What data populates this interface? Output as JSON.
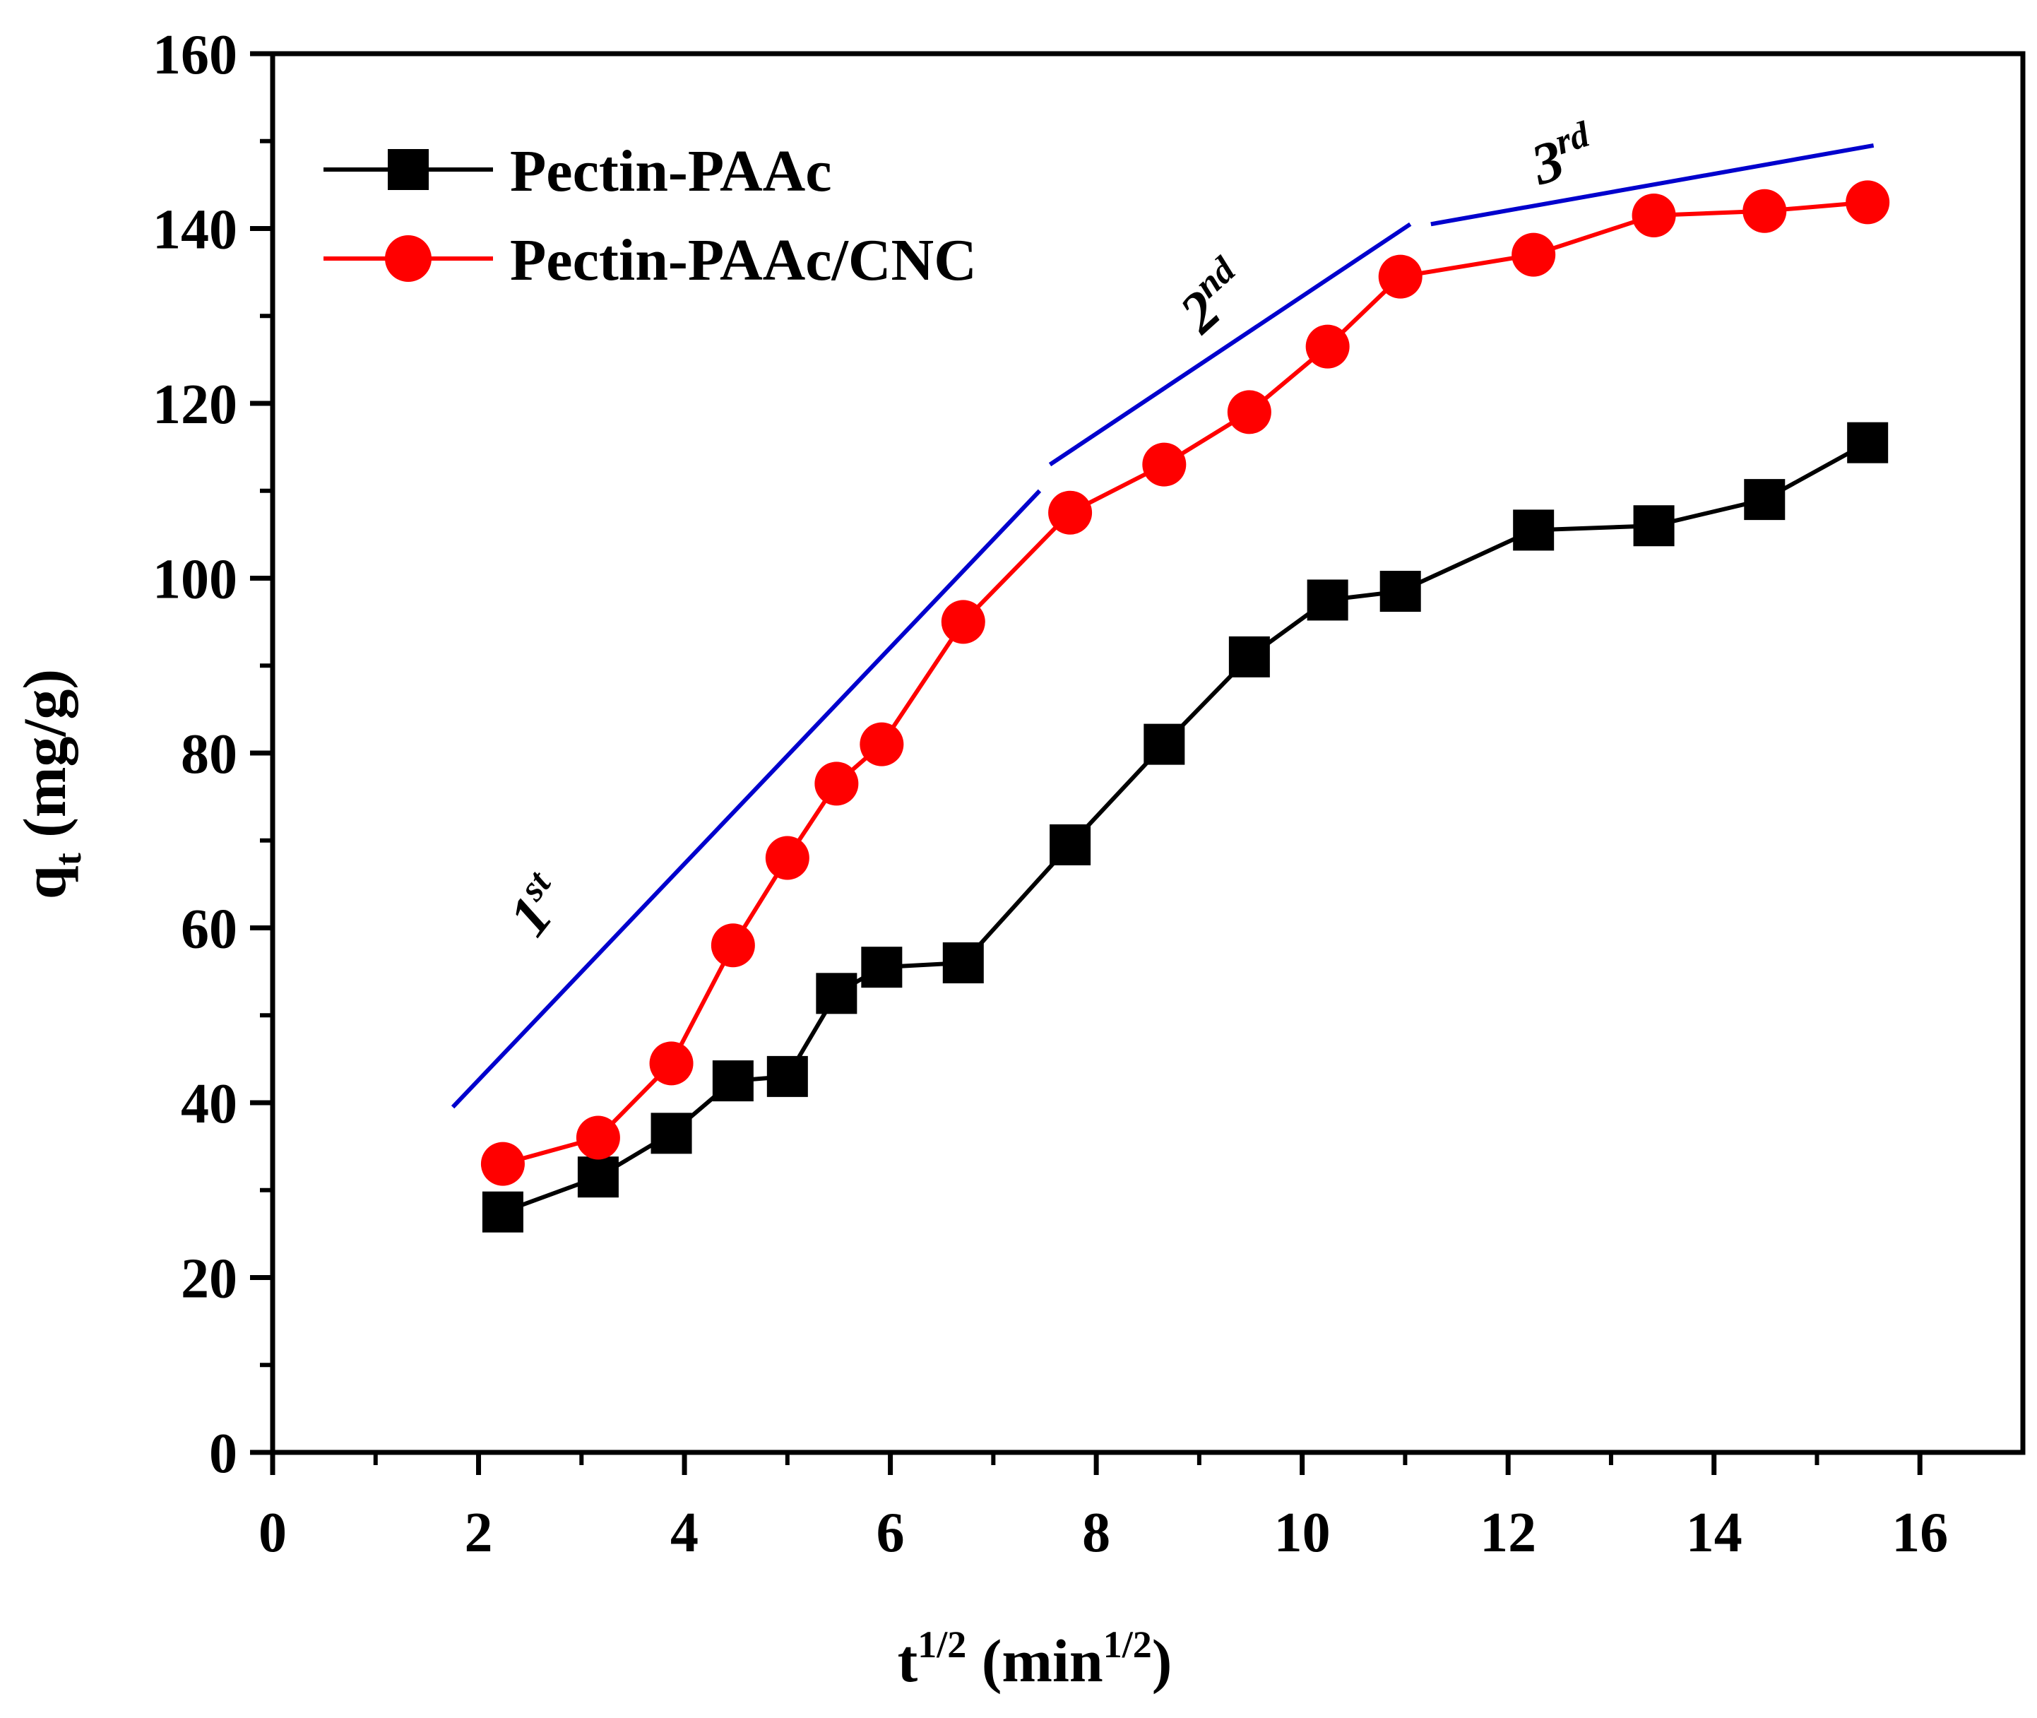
{
  "chart_data": {
    "type": "line",
    "title": "",
    "xlabel": {
      "base": "t",
      "sup": "1/2",
      "unit_open": " (min",
      "unit_sup": "1/2",
      "unit_close": ")"
    },
    "ylabel": {
      "base": "q",
      "sub": "t",
      "unit": " (mg/g)"
    },
    "xlim": [
      0,
      17
    ],
    "ylim": [
      0,
      160
    ],
    "xticks": [
      0,
      2,
      4,
      6,
      8,
      10,
      12,
      14,
      16
    ],
    "yticks": [
      0,
      20,
      40,
      60,
      80,
      100,
      120,
      140,
      160
    ],
    "grid": false,
    "legend_position": "top-left",
    "series": [
      {
        "name": "Pectin-PAAc",
        "color": "#000000",
        "marker": "square",
        "x": [
          2.236,
          3.162,
          3.873,
          4.472,
          5.0,
          5.477,
          5.916,
          6.708,
          7.746,
          8.66,
          9.487,
          10.247,
          10.954,
          12.247,
          13.416,
          14.491,
          15.492
        ],
        "y": [
          27.5,
          31.5,
          36.5,
          42.5,
          43.0,
          52.5,
          55.5,
          56.0,
          69.5,
          81.0,
          91.0,
          97.5,
          98.5,
          105.5,
          106.0,
          109.0,
          115.5
        ]
      },
      {
        "name": "Pectin-PAAc/CNC",
        "color": "#ff0000",
        "marker": "circle",
        "x": [
          2.236,
          3.162,
          3.873,
          4.472,
          5.0,
          5.477,
          5.916,
          6.708,
          7.746,
          8.66,
          9.487,
          10.247,
          10.954,
          12.247,
          13.416,
          14.491,
          15.492
        ],
        "y": [
          33.0,
          36.0,
          44.5,
          58.0,
          68.0,
          76.5,
          81.0,
          95.0,
          107.5,
          113.0,
          119.0,
          126.5,
          134.5,
          137.0,
          141.5,
          142.0,
          143.0
        ]
      }
    ],
    "fit_lines": [
      {
        "label": "1",
        "sup": "st",
        "color": "#0000cd",
        "x": [
          1.75,
          7.45
        ],
        "y": [
          39.5,
          110.0
        ]
      },
      {
        "label": "2",
        "sup": "nd",
        "color": "#0000cd",
        "x": [
          7.55,
          11.05
        ],
        "y": [
          113.0,
          140.5
        ]
      },
      {
        "label": "3",
        "sup": "rd",
        "color": "#0000cd",
        "x": [
          11.25,
          15.55
        ],
        "y": [
          140.5,
          149.5
        ]
      }
    ]
  }
}
